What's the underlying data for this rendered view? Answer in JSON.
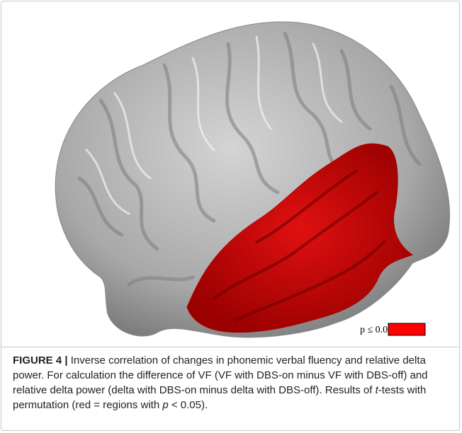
{
  "figure": {
    "legend": {
      "label": "p ≤ 0.05"
    },
    "caption": {
      "label": "FIGURE 4 |",
      "parts": [
        " Inverse correlation of changes in phonemic verbal fluency and relative delta power. For calculation the difference of VF (VF with DBS-on minus VF with DBS-off) and relative delta power (delta with DBS-on minus delta with DBS-off). Results of ",
        "t",
        "-tests with permutation (red = regions with ",
        "p",
        " < 0.05)."
      ]
    }
  }
}
